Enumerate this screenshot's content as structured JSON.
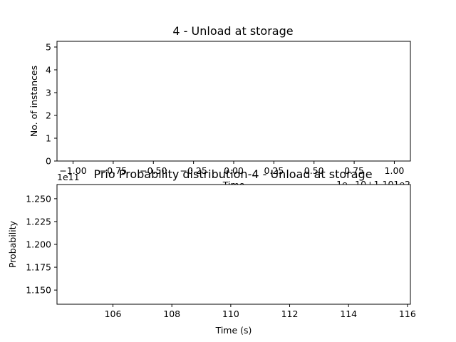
{
  "chart_data": [
    {
      "type": "line",
      "title": "4 - Unload at storage",
      "xlabel": "Time",
      "ylabel": "No. of instances",
      "xlim": [
        -1.1,
        1.1
      ],
      "ylim": [
        0,
        5.25
      ],
      "x_ticks": [
        "−1.00",
        "−0.75",
        "−0.50",
        "−0.25",
        "0.00",
        "0.25",
        "0.50",
        "0.75",
        "1.00"
      ],
      "y_ticks": [
        "0",
        "1",
        "2",
        "3",
        "4",
        "5"
      ],
      "x_offset_text": "1e−10+1.101e2",
      "series": []
    },
    {
      "type": "line",
      "title": "Prio Probability distribution-4 - Unload at storage",
      "xlabel": "Time (s)",
      "ylabel": "Probability",
      "xlim": [
        104.1,
        116.1
      ],
      "ylim": [
        1.1345,
        1.2655
      ],
      "x_ticks": [
        "106",
        "108",
        "110",
        "112",
        "114",
        "116"
      ],
      "y_ticks": [
        "1.150",
        "1.175",
        "1.200",
        "1.225",
        "1.250"
      ],
      "y_offset_text": "1e11",
      "series": []
    }
  ]
}
